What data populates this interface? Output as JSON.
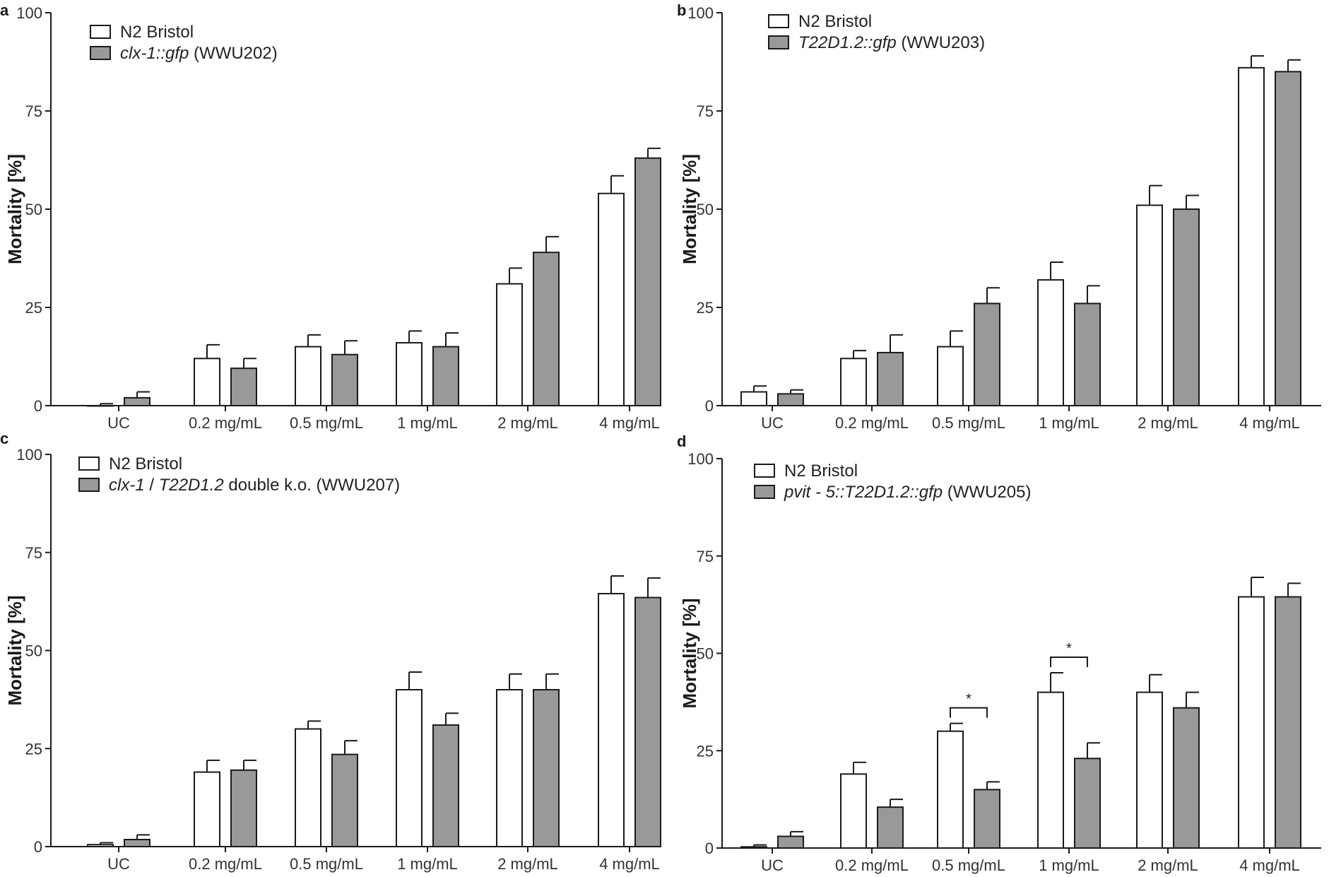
{
  "chart_data": [
    {
      "type": "bar",
      "panel": "a",
      "ylabel": "Mortality [%]",
      "xlabel": "",
      "ylim": [
        0,
        100
      ],
      "yticks": [
        0,
        25,
        50,
        75,
        100
      ],
      "categories": [
        "UC",
        "0.2 mg/mL",
        "0.5 mg/mL",
        "1 mg/mL",
        "2 mg/mL",
        "4 mg/mL"
      ],
      "legend_position": "top-left",
      "series": [
        {
          "name": "N2 Bristol",
          "name_italic": "",
          "name_suffix": "",
          "fill": "white",
          "values": [
            0,
            12,
            15,
            16,
            31,
            54
          ],
          "errors": [
            0.5,
            3.5,
            3,
            3,
            4,
            4.5
          ]
        },
        {
          "name": "",
          "name_italic": "clx-1::gfp",
          "name_suffix": " (WWU202)",
          "fill": "gray",
          "values": [
            2,
            9.5,
            13,
            15,
            39,
            63
          ],
          "errors": [
            1.5,
            2.5,
            3.5,
            3.5,
            4,
            2.5
          ]
        }
      ],
      "significance": []
    },
    {
      "type": "bar",
      "panel": "b",
      "ylabel": "Mortality [%]",
      "xlabel": "",
      "ylim": [
        0,
        100
      ],
      "yticks": [
        0,
        25,
        50,
        75,
        100
      ],
      "categories": [
        "UC",
        "0.2 mg/mL",
        "0.5 mg/mL",
        "1 mg/mL",
        "2 mg/mL",
        "4 mg/mL"
      ],
      "legend_position": "top-left",
      "series": [
        {
          "name": "N2 Bristol",
          "name_italic": "",
          "name_suffix": "",
          "fill": "white",
          "values": [
            3.5,
            12,
            15,
            32,
            51,
            86
          ],
          "errors": [
            1.5,
            2,
            4,
            4.5,
            5,
            3
          ]
        },
        {
          "name": "",
          "name_italic": "T22D1.2::gfp",
          "name_suffix": " (WWU203)",
          "fill": "gray",
          "values": [
            3,
            13.5,
            26,
            26,
            50,
            85
          ],
          "errors": [
            1,
            4.5,
            4,
            4.5,
            3.5,
            3
          ]
        }
      ],
      "significance": []
    },
    {
      "type": "bar",
      "panel": "c",
      "ylabel": "Mortality [%]",
      "xlabel": "",
      "ylim": [
        0,
        100
      ],
      "yticks": [
        0,
        25,
        50,
        75,
        100
      ],
      "categories": [
        "UC",
        "0.2 mg/mL",
        "0.5 mg/mL",
        "1 mg/mL",
        "2 mg/mL",
        "4 mg/mL"
      ],
      "legend_position": "top-left",
      "series": [
        {
          "name": "N2 Bristol",
          "name_italic": "",
          "name_suffix": "",
          "fill": "white",
          "values": [
            0.5,
            19,
            30,
            40,
            40,
            64.5
          ],
          "errors": [
            0.5,
            3,
            2,
            4.5,
            4,
            4.5
          ]
        },
        {
          "name": "",
          "name_italic": "clx-1",
          "name_mid": " / ",
          "name_italic2": "T22D1.2",
          "name_suffix": " double k.o. (WWU207)",
          "fill": "gray",
          "values": [
            1.8,
            19.5,
            23.5,
            31,
            40,
            63.5
          ],
          "errors": [
            1.2,
            2.5,
            3.5,
            3,
            4,
            5
          ]
        }
      ],
      "significance": []
    },
    {
      "type": "bar",
      "panel": "d",
      "ylabel": "Mortality [%]",
      "xlabel": "",
      "ylim": [
        0,
        100
      ],
      "yticks": [
        0,
        25,
        50,
        75,
        100
      ],
      "categories": [
        "UC",
        "0.2 mg/mL",
        "0.5 mg/mL",
        "1 mg/mL",
        "2 mg/mL",
        "4 mg/mL"
      ],
      "legend_position": "top-left",
      "series": [
        {
          "name": "N2 Bristol",
          "name_italic": "",
          "name_suffix": "",
          "fill": "white",
          "values": [
            0.3,
            19,
            30,
            40,
            40,
            64.5
          ],
          "errors": [
            0.5,
            3,
            2,
            5,
            4.5,
            5
          ]
        },
        {
          "name": "",
          "name_italic": "pvit - 5::T22D1.2::gfp",
          "name_suffix": " (WWU205)",
          "fill": "gray",
          "values": [
            3,
            10.5,
            15,
            23,
            36,
            64.5
          ],
          "errors": [
            1.2,
            2,
            2,
            4,
            4,
            3.5
          ]
        }
      ],
      "significance": [
        {
          "category_index": 2,
          "label": "*"
        },
        {
          "category_index": 3,
          "label": "*"
        }
      ]
    }
  ],
  "colors": {
    "gray_fill": "#999999",
    "white_fill": "#ffffff",
    "stroke": "#1a1a1a"
  }
}
